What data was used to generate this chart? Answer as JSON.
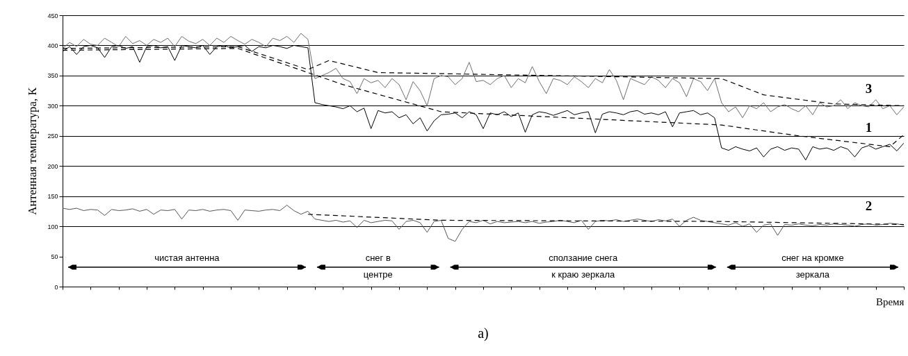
{
  "chart_data": {
    "type": "line",
    "ylabel": "Антенная температура, К",
    "xlabel": "Время",
    "categories": [
      null,
      null,
      null,
      null,
      null,
      null,
      null,
      null,
      null,
      null,
      null,
      null,
      null,
      null,
      null,
      null,
      null,
      null,
      null,
      null,
      null,
      null,
      null,
      null,
      null,
      null,
      null,
      null,
      null,
      null,
      null,
      null,
      null,
      null,
      null,
      null,
      null,
      null,
      null,
      null,
      null,
      null,
      null,
      null,
      null,
      null,
      null,
      null,
      null,
      null,
      null,
      null,
      null,
      null,
      null,
      null,
      null,
      null,
      null,
      null,
      null,
      null,
      null,
      null,
      null,
      null,
      null,
      null,
      null,
      null,
      null,
      null,
      null,
      null,
      null,
      null,
      null,
      null,
      null,
      null,
      null,
      null,
      null,
      null,
      null,
      null,
      null,
      null,
      null,
      null,
      null,
      null,
      null,
      null,
      null,
      null,
      null,
      null,
      null,
      null,
      null,
      null,
      null,
      null,
      null,
      null,
      null,
      null,
      null,
      null,
      null,
      null,
      null,
      null,
      null,
      null,
      null,
      null,
      null,
      null,
      null
    ],
    "series": [
      {
        "name": "3",
        "color": "#6e6e6e",
        "values": [
          395,
          405,
          398,
          410,
          402,
          400,
          412,
          405,
          398,
          415,
          403,
          408,
          400,
          410,
          405,
          412,
          398,
          415,
          407,
          403,
          410,
          400,
          412,
          405,
          415,
          408,
          402,
          410,
          405,
          398,
          412,
          408,
          415,
          405,
          420,
          410,
          345,
          350,
          355,
          362,
          345,
          340,
          320,
          345,
          338,
          342,
          330,
          345,
          335,
          310,
          340,
          325,
          300,
          345,
          350,
          348,
          335,
          345,
          372,
          340,
          342,
          335,
          345,
          350,
          330,
          345,
          338,
          365,
          340,
          320,
          345,
          342,
          335,
          348,
          340,
          330,
          345,
          338,
          360,
          342,
          310,
          345,
          340,
          335,
          348,
          342,
          330,
          345,
          338,
          315,
          345,
          340,
          325,
          345,
          305,
          290,
          298,
          280,
          300,
          295,
          305,
          290,
          298,
          302,
          295,
          290,
          300,
          285,
          305,
          298,
          300,
          310,
          295,
          305,
          300,
          298,
          310,
          295,
          300,
          285,
          298
        ]
      },
      {
        "name": "1",
        "color": "#000000",
        "values": [
          390,
          398,
          385,
          398,
          400,
          396,
          380,
          398,
          400,
          395,
          398,
          372,
          398,
          400,
          396,
          398,
          375,
          400,
          398,
          396,
          400,
          385,
          398,
          400,
          396,
          398,
          400,
          390,
          398,
          396,
          400,
          398,
          395,
          400,
          398,
          396,
          305,
          302,
          300,
          298,
          295,
          300,
          290,
          296,
          262,
          292,
          288,
          290,
          280,
          285,
          270,
          280,
          258,
          275,
          285,
          286,
          288,
          280,
          290,
          285,
          262,
          288,
          285,
          290,
          282,
          288,
          256,
          285,
          290,
          288,
          284,
          288,
          292,
          285,
          288,
          290,
          255,
          286,
          290,
          288,
          285,
          290,
          292,
          286,
          288,
          285,
          290,
          265,
          288,
          290,
          292,
          285,
          288,
          280,
          230,
          226,
          232,
          228,
          225,
          230,
          215,
          228,
          232,
          226,
          230,
          228,
          210,
          232,
          228,
          230,
          226,
          232,
          228,
          215,
          230,
          234,
          228,
          232,
          236,
          225,
          238
        ]
      },
      {
        "name": "2",
        "color": "#555555",
        "values": [
          130,
          128,
          130,
          126,
          128,
          127,
          118,
          128,
          126,
          127,
          129,
          125,
          128,
          120,
          127,
          126,
          128,
          112,
          127,
          126,
          128,
          125,
          127,
          128,
          126,
          110,
          127,
          126,
          125,
          127,
          128,
          126,
          135,
          126,
          120,
          125,
          112,
          110,
          108,
          110,
          107,
          109,
          98,
          110,
          106,
          108,
          110,
          109,
          95,
          108,
          110,
          106,
          90,
          108,
          110,
          80,
          75,
          95,
          108,
          106,
          110,
          104,
          108,
          106,
          107,
          108,
          106,
          108,
          105,
          107,
          108,
          110,
          108,
          106,
          110,
          95,
          108,
          110,
          109,
          111,
          108,
          110,
          112,
          110,
          108,
          111,
          109,
          112,
          100,
          110,
          115,
          110,
          108,
          106,
          104,
          102,
          106,
          100,
          104,
          90,
          102,
          104,
          85,
          103,
          102,
          104,
          102,
          101,
          103,
          102,
          104,
          103,
          102,
          100,
          103,
          104,
          102,
          103,
          105,
          104,
          102
        ]
      },
      {
        "color": "#000000",
        "line_style": "dashed",
        "values": [
          395,
          null,
          null,
          null,
          null,
          null,
          null,
          null,
          null,
          null,
          null,
          null,
          null,
          null,
          null,
          null,
          null,
          null,
          null,
          null,
          null,
          null,
          null,
          null,
          null,
          398,
          null,
          null,
          null,
          null,
          null,
          null,
          null,
          null,
          null,
          360,
          null,
          null,
          375,
          null,
          null,
          null,
          null,
          null,
          null,
          355,
          null,
          null,
          null,
          null,
          null,
          null,
          null,
          null,
          null,
          null,
          null,
          null,
          null,
          null,
          null,
          null,
          null,
          null,
          null,
          null,
          null,
          null,
          null,
          null,
          null,
          null,
          null,
          null,
          null,
          null,
          null,
          null,
          null,
          null,
          null,
          null,
          null,
          null,
          null,
          null,
          null,
          null,
          null,
          null,
          null,
          null,
          null,
          null,
          345,
          null,
          null,
          null,
          null,
          null,
          318,
          null,
          null,
          null,
          null,
          null,
          null,
          null,
          null,
          null,
          303,
          null,
          null,
          null,
          null,
          null,
          null,
          null,
          null,
          null,
          300
        ]
      },
      {
        "color": "#000000",
        "line_style": "dashed",
        "values": [
          392,
          null,
          null,
          null,
          null,
          null,
          null,
          null,
          null,
          null,
          null,
          null,
          null,
          null,
          null,
          null,
          null,
          null,
          null,
          null,
          null,
          null,
          null,
          null,
          null,
          395,
          null,
          null,
          null,
          null,
          null,
          null,
          null,
          null,
          null,
          355,
          null,
          null,
          null,
          null,
          335,
          null,
          null,
          null,
          null,
          null,
          null,
          null,
          null,
          null,
          null,
          null,
          null,
          null,
          290,
          null,
          null,
          null,
          null,
          null,
          null,
          null,
          null,
          null,
          null,
          null,
          null,
          null,
          null,
          null,
          null,
          null,
          null,
          null,
          null,
          null,
          null,
          null,
          null,
          null,
          null,
          null,
          null,
          null,
          null,
          null,
          null,
          null,
          null,
          null,
          null,
          null,
          null,
          null,
          268,
          null,
          null,
          null,
          null,
          null,
          null,
          null,
          null,
          null,
          null,
          250,
          null,
          null,
          null,
          null,
          null,
          null,
          null,
          null,
          null,
          null,
          null,
          null,
          232,
          null,
          252
        ]
      },
      {
        "color": "#000000",
        "line_style": "dashed",
        "values": [
          null,
          null,
          null,
          null,
          null,
          null,
          null,
          null,
          null,
          null,
          null,
          null,
          null,
          null,
          null,
          null,
          null,
          null,
          null,
          null,
          null,
          null,
          null,
          null,
          null,
          null,
          null,
          null,
          null,
          null,
          null,
          null,
          null,
          null,
          null,
          120,
          null,
          null,
          null,
          null,
          null,
          null,
          null,
          null,
          null,
          null,
          null,
          null,
          null,
          null,
          null,
          null,
          null,
          null,
          110,
          null,
          null,
          null,
          null,
          null,
          null,
          null,
          null,
          null,
          null,
          null,
          null,
          null,
          null,
          null,
          null,
          null,
          null,
          null,
          null,
          null,
          null,
          null,
          null,
          null,
          null,
          null,
          null,
          null,
          null,
          null,
          null,
          null,
          null,
          null,
          null,
          null,
          null,
          null,
          108,
          null,
          null,
          null,
          null,
          null,
          null,
          null,
          null,
          null,
          null,
          null,
          null,
          null,
          null,
          null,
          null,
          null,
          null,
          null,
          null,
          null,
          null,
          null,
          null,
          null,
          103
        ]
      }
    ],
    "ylim": [
      0,
      450
    ],
    "yticks": [
      0,
      50,
      100,
      150,
      200,
      250,
      300,
      350,
      400,
      450
    ],
    "grid": "y",
    "tick_labels": "y",
    "annotations": [
      "чистая антенна",
      "снег в\nцентре",
      "сползание снега\nк краю зеркала",
      "снег на кромке\nзеркала",
      "а)"
    ]
  }
}
